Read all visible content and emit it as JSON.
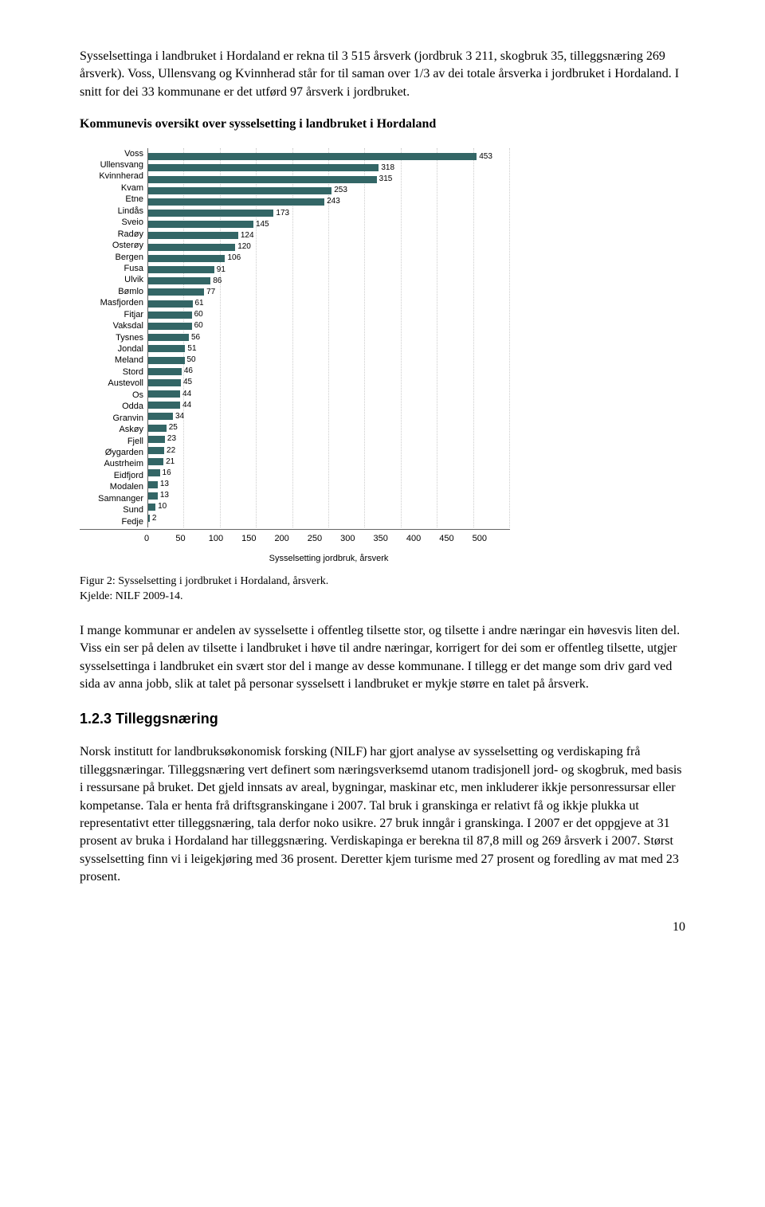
{
  "paragraphs": {
    "p1": "Sysselsettinga i landbruket i Hordaland er rekna til 3 515 årsverk (jordbruk 3 211, skogbruk 35, tilleggsnæring 269 årsverk). Voss, Ullensvang og Kvinnherad står for til saman over 1/3 av dei totale årsverka i jordbruket i Hordaland. I snitt for dei 33 kommunane er det utførd 97 årsverk i jordbruket.",
    "heading1": "Kommunevis oversikt over sysselsetting i landbruket i Hordaland",
    "caption_line1": "Figur 2: Sysselsetting i jordbruket i Hordaland, årsverk.",
    "caption_line2": "Kjelde: NILF 2009-14.",
    "p2": "I mange kommunar er andelen av sysselsette i offentleg tilsette stor, og tilsette i andre næringar ein høvesvis liten del. Viss ein ser på delen av tilsette i landbruket i høve til andre næringar, korrigert for dei som er offentleg tilsette, utgjer sysselsettinga i landbruket ein svært stor del i mange av desse kommunane. I tillegg er det mange som driv gard ved sida av anna jobb, slik at talet på personar sysselsett i landbruket er mykje større en talet på årsverk.",
    "subheading": "1.2.3  Tilleggsnæring",
    "p3": "Norsk institutt for landbruksøkonomisk forsking (NILF) har gjort analyse av sysselsetting og verdiskaping frå tilleggsnæringar. Tilleggsnæring vert definert som næringsverksemd utanom tradisjonell jord- og skogbruk, med basis i ressursane på bruket. Det gjeld innsats av areal, bygningar, maskinar etc, men inkluderer ikkje personressursar eller kompetanse. Tala er henta frå driftsgranskingane i 2007. Tal bruk i granskinga er relativt få og ikkje plukka ut representativt etter tilleggsnæring, tala derfor noko usikre. 27 bruk inngår i granskinga. I 2007 er det oppgjeve at 31 prosent av bruka i Hordaland har tilleggsnæring. Verdiskapinga er berekna til 87,8 mill og 269 årsverk i 2007. Størst sysselsetting finn vi i leigekjøring med 36 prosent. Deretter kjem turisme med 27 prosent og foredling av mat med 23 prosent."
  },
  "chart": {
    "type": "bar",
    "x_label": "Sysselsetting jordbruk, årsverk",
    "x_max": 500,
    "x_ticks": [
      "0",
      "50",
      "100",
      "150",
      "200",
      "250",
      "300",
      "350",
      "400",
      "450",
      "500"
    ],
    "bar_color": "#336666",
    "background_color": "#ffffff",
    "grid_color": "#cccccc",
    "label_fontsize": 11,
    "value_fontsize": 10,
    "rows": [
      {
        "label": "Voss",
        "value": 453
      },
      {
        "label": "Ullensvang",
        "value": 318
      },
      {
        "label": "Kvinnherad",
        "value": 315
      },
      {
        "label": "Kvam",
        "value": 253
      },
      {
        "label": "Etne",
        "value": 243
      },
      {
        "label": "Lindås",
        "value": 173
      },
      {
        "label": "Sveio",
        "value": 145
      },
      {
        "label": "Radøy",
        "value": 124
      },
      {
        "label": "Osterøy",
        "value": 120
      },
      {
        "label": "Bergen",
        "value": 106
      },
      {
        "label": "Fusa",
        "value": 91
      },
      {
        "label": "Ulvik",
        "value": 86
      },
      {
        "label": "Bømlo",
        "value": 77
      },
      {
        "label": "Masfjorden",
        "value": 61
      },
      {
        "label": "Fitjar",
        "value": 60
      },
      {
        "label": "Vaksdal",
        "value": 60
      },
      {
        "label": "Tysnes",
        "value": 56
      },
      {
        "label": "Jondal",
        "value": 51
      },
      {
        "label": "Meland",
        "value": 50
      },
      {
        "label": "Stord",
        "value": 46
      },
      {
        "label": "Austevoll",
        "value": 45
      },
      {
        "label": "Os",
        "value": 44
      },
      {
        "label": "Odda",
        "value": 44
      },
      {
        "label": "Granvin",
        "value": 34
      },
      {
        "label": "Askøy",
        "value": 25
      },
      {
        "label": "Fjell",
        "value": 23
      },
      {
        "label": "Øygarden",
        "value": 22
      },
      {
        "label": "Austrheim",
        "value": 21
      },
      {
        "label": "Eidfjord",
        "value": 16
      },
      {
        "label": "Modalen",
        "value": 13
      },
      {
        "label": "Samnanger",
        "value": 13
      },
      {
        "label": "Sund",
        "value": 10
      },
      {
        "label": "Fedje",
        "value": 2
      }
    ]
  },
  "page_number": "10"
}
